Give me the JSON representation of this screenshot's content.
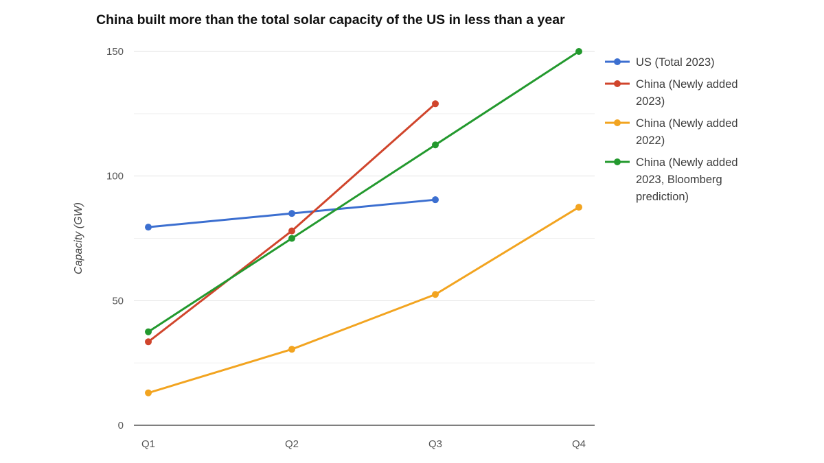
{
  "chart_data": {
    "type": "line",
    "title": "China built more than the total solar capacity of the US in less than a year",
    "xlabel": "",
    "ylabel": "Capacity (GW)",
    "ylim": [
      0,
      150
    ],
    "yticks": [
      0,
      50,
      100,
      150
    ],
    "categories": [
      "Q1",
      "Q2",
      "Q3",
      "Q4"
    ],
    "grid": true,
    "legend_position": "right",
    "series": [
      {
        "name": "US (Total 2023)",
        "legend_lines": [
          "US (Total 2023)"
        ],
        "color": "#3c6fd0",
        "values": [
          79.5,
          85,
          90.5,
          null
        ]
      },
      {
        "name": "China (Newly added 2023)",
        "legend_lines": [
          "China (Newly added",
          "2023)"
        ],
        "color": "#d0452c",
        "values": [
          33.5,
          78,
          129,
          null
        ]
      },
      {
        "name": "China (Newly added 2022)",
        "legend_lines": [
          "China (Newly added",
          "2022)"
        ],
        "color": "#f2a420",
        "values": [
          13,
          30.5,
          52.5,
          87.5
        ]
      },
      {
        "name": "China (Newly added 2023, Bloomberg prediction)",
        "legend_lines": [
          "China (Newly added",
          "2023, Bloomberg",
          "prediction)"
        ],
        "color": "#23992e",
        "values": [
          37.5,
          75,
          112.5,
          150
        ]
      }
    ]
  }
}
